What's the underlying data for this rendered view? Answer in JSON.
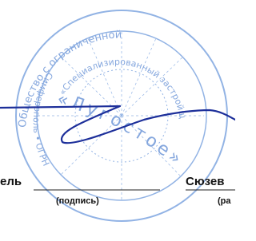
{
  "signature_block": {
    "position_fragment": "ель",
    "signature_caption": "(подпись)",
    "name_fragment": "Сюзев",
    "name_caption_fragment": "(ра"
  },
  "stamp": {
    "outer_text_top": "Общество с ограниченной",
    "outer_text_bottom": "Симферополь • ОГРН",
    "inner_text": "«Специализированный застройщик",
    "center_text": "«Лугостое»"
  }
}
